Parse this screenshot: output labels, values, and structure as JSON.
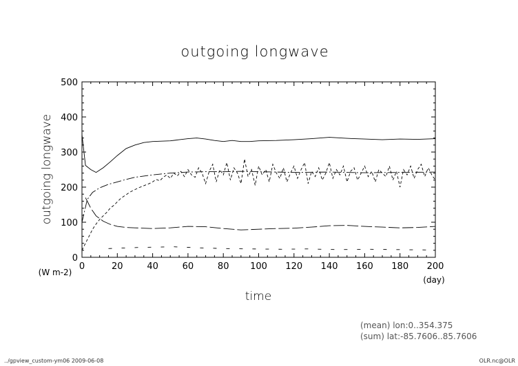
{
  "chart_data": {
    "type": "line",
    "title": "outgoing longwave",
    "xlabel": "time",
    "ylabel": "outgoing longwave",
    "x_unit": "(day)",
    "y_unit": "(W m-2)",
    "xlim": [
      0,
      200
    ],
    "ylim": [
      0,
      500
    ],
    "x_ticks": [
      0,
      20,
      40,
      60,
      80,
      100,
      120,
      140,
      160,
      180,
      200
    ],
    "y_ticks": [
      0,
      100,
      200,
      300,
      400,
      500
    ],
    "grid": false,
    "series": [
      {
        "style": "solid",
        "x": [
          0,
          2,
          5,
          8,
          12,
          16,
          20,
          25,
          30,
          35,
          40,
          45,
          50,
          55,
          60,
          65,
          70,
          75,
          80,
          85,
          90,
          95,
          100,
          110,
          120,
          130,
          140,
          150,
          160,
          170,
          180,
          190,
          200
        ],
        "y": [
          350,
          262,
          250,
          242,
          255,
          272,
          290,
          310,
          320,
          327,
          330,
          331,
          332,
          335,
          338,
          340,
          337,
          333,
          330,
          333,
          330,
          330,
          332,
          333,
          335,
          338,
          342,
          339,
          337,
          335,
          337,
          336,
          338
        ]
      },
      {
        "style": "dash-dot",
        "x": [
          0,
          3,
          6,
          10,
          15,
          20,
          25,
          30,
          40,
          50,
          60,
          70,
          80,
          90,
          100,
          120,
          140,
          160,
          180,
          200
        ],
        "y": [
          100,
          165,
          185,
          198,
          208,
          215,
          222,
          228,
          235,
          240,
          243,
          244,
          244,
          245,
          244,
          242,
          243,
          241,
          242,
          243
        ]
      },
      {
        "style": "long-dash",
        "x": [
          2,
          5,
          8,
          12,
          16,
          20,
          25,
          30,
          40,
          50,
          60,
          70,
          80,
          90,
          100,
          110,
          120,
          130,
          140,
          150,
          160,
          170,
          180,
          190,
          200
        ],
        "y": [
          170,
          140,
          118,
          103,
          94,
          88,
          85,
          84,
          82,
          84,
          88,
          87,
          82,
          78,
          80,
          82,
          83,
          86,
          90,
          91,
          88,
          86,
          84,
          85,
          88
        ]
      },
      {
        "style": "dashed",
        "x": [
          0,
          2,
          4,
          6,
          8,
          10,
          12,
          14,
          16,
          18,
          20,
          22,
          24,
          26,
          28,
          30,
          32,
          34,
          36,
          38,
          40,
          42,
          44,
          46,
          48,
          50,
          52,
          54,
          56,
          58,
          60,
          62,
          64,
          66,
          68,
          70,
          72,
          74,
          76,
          78,
          80,
          82,
          84,
          86,
          88,
          90,
          92,
          94,
          96,
          98,
          100,
          102,
          104,
          106,
          108,
          110,
          112,
          114,
          116,
          118,
          120,
          122,
          124,
          126,
          128,
          130,
          132,
          134,
          136,
          138,
          140,
          142,
          144,
          146,
          148,
          150,
          152,
          154,
          156,
          158,
          160,
          162,
          164,
          166,
          168,
          170,
          172,
          174,
          176,
          178,
          180,
          182,
          184,
          186,
          188,
          190,
          192,
          194,
          196,
          198,
          200
        ],
        "y": [
          20,
          40,
          60,
          80,
          95,
          108,
          118,
          128,
          140,
          148,
          158,
          168,
          175,
          182,
          188,
          193,
          198,
          202,
          206,
          210,
          215,
          222,
          218,
          228,
          235,
          225,
          240,
          232,
          245,
          230,
          250,
          235,
          228,
          255,
          240,
          210,
          245,
          265,
          215,
          250,
          235,
          270,
          220,
          255,
          240,
          210,
          280,
          230,
          250,
          205,
          260,
          235,
          250,
          215,
          265,
          240,
          225,
          255,
          215,
          240,
          260,
          225,
          250,
          270,
          210,
          245,
          230,
          255,
          220,
          240,
          270,
          225,
          250,
          235,
          260,
          215,
          245,
          255,
          220,
          240,
          260,
          230,
          245,
          215,
          250,
          240,
          230,
          260,
          220,
          245,
          200,
          250,
          235,
          260,
          225,
          250,
          265,
          230,
          255,
          235,
          220
        ]
      },
      {
        "style": "short-dash",
        "x": [
          15,
          32,
          52,
          66,
          80,
          96,
          113,
          127,
          145,
          162,
          178,
          195
        ],
        "y": [
          25,
          28,
          30,
          27,
          25,
          24,
          23,
          24,
          22,
          23,
          22,
          21
        ]
      }
    ]
  },
  "annotations": {
    "info_line1": "(mean) lon:0..354.375",
    "info_line2": "(sum) lat:-85.7606..85.7606",
    "footer_left": "../gpview_custom-ym06  2009-06-08",
    "footer_right": "OLR.nc@OLR"
  }
}
